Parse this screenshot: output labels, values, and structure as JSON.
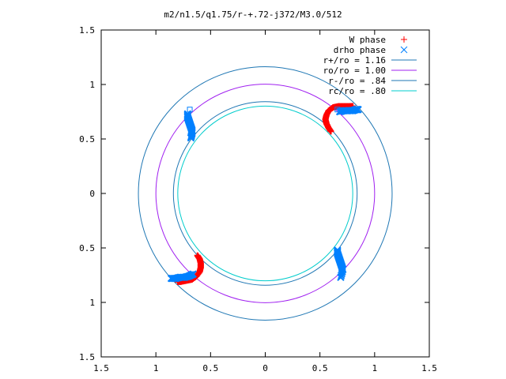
{
  "chart_data": {
    "type": "scatter",
    "title": "m2/n1.5/q1.75/r-+.72-j372/M3.0/512",
    "xlabel": "",
    "ylabel": "",
    "xlim": [
      -1.5,
      1.5
    ],
    "ylim": [
      -1.5,
      1.5
    ],
    "x_ticks": [
      -1.5,
      -1,
      -0.5,
      0,
      0.5,
      1,
      1.5
    ],
    "x_tick_labels": [
      "1.5",
      "1",
      "0.5",
      "0",
      "0.5",
      "1",
      "1.5"
    ],
    "y_ticks": [
      1.5,
      1,
      0.5,
      0,
      -0.5,
      -1,
      -1.5
    ],
    "y_tick_labels": [
      "1.5",
      "1",
      "0.5",
      "0",
      "0.5",
      "1",
      "1.5"
    ],
    "grid": false,
    "legend_position": "top-right",
    "circles": [
      {
        "name": "r+/ro = 1.16",
        "radius": 1.16,
        "color": "#1f77b4"
      },
      {
        "name": "ro/ro = 1.00",
        "radius": 1.0,
        "color": "#a020f0"
      },
      {
        "name": "r-/ro = .84",
        "radius": 0.84,
        "color": "#1f77b4"
      },
      {
        "name": "rc/ro = .80",
        "radius": 0.8,
        "color": "#00cccc"
      }
    ],
    "series": [
      {
        "name": "W phase",
        "marker": "+",
        "color": "#ff0000",
        "groups": [
          [
            [
              0.6,
              0.57
            ],
            [
              0.58,
              0.6
            ],
            [
              0.56,
              0.64
            ],
            [
              0.55,
              0.68
            ],
            [
              0.56,
              0.72
            ],
            [
              0.58,
              0.76
            ],
            [
              0.62,
              0.79
            ],
            [
              0.67,
              0.8
            ],
            [
              0.72,
              0.8
            ],
            [
              0.77,
              0.8
            ],
            [
              0.8,
              0.8
            ]
          ],
          [
            [
              -0.62,
              -0.57
            ],
            [
              -0.6,
              -0.6
            ],
            [
              -0.59,
              -0.64
            ],
            [
              -0.59,
              -0.68
            ],
            [
              -0.6,
              -0.72
            ],
            [
              -0.63,
              -0.76
            ],
            [
              -0.67,
              -0.79
            ],
            [
              -0.72,
              -0.8
            ],
            [
              -0.77,
              -0.81
            ],
            [
              -0.8,
              -0.81
            ]
          ]
        ]
      },
      {
        "name": "drho phase",
        "marker": "x",
        "color": "#0080ff",
        "groups": [
          [
            [
              0.68,
              0.75
            ],
            [
              0.72,
              0.76
            ],
            [
              0.76,
              0.76
            ],
            [
              0.8,
              0.76
            ],
            [
              0.83,
              0.77
            ],
            [
              0.85,
              0.77
            ]
          ],
          [
            [
              -0.71,
              0.73
            ],
            [
              -0.71,
              0.7
            ],
            [
              -0.7,
              0.67
            ],
            [
              -0.69,
              0.64
            ],
            [
              -0.68,
              0.61
            ],
            [
              -0.67,
              0.58
            ],
            [
              -0.67,
              0.55
            ],
            [
              -0.68,
              0.51
            ]
          ],
          [
            [
              0.66,
              -0.52
            ],
            [
              0.66,
              -0.55
            ],
            [
              0.67,
              -0.58
            ],
            [
              0.68,
              -0.61
            ],
            [
              0.69,
              -0.64
            ],
            [
              0.7,
              -0.67
            ],
            [
              0.71,
              -0.7
            ],
            [
              0.69,
              -0.77
            ]
          ],
          [
            [
              -0.66,
              -0.74
            ],
            [
              -0.7,
              -0.76
            ],
            [
              -0.74,
              -0.77
            ],
            [
              -0.78,
              -0.77
            ],
            [
              -0.82,
              -0.78
            ],
            [
              -0.86,
              -0.78
            ]
          ]
        ]
      }
    ],
    "open_squares": [
      [
        0.66,
        0.77
      ],
      [
        -0.69,
        0.77
      ],
      [
        -0.67,
        -0.74
      ]
    ]
  }
}
